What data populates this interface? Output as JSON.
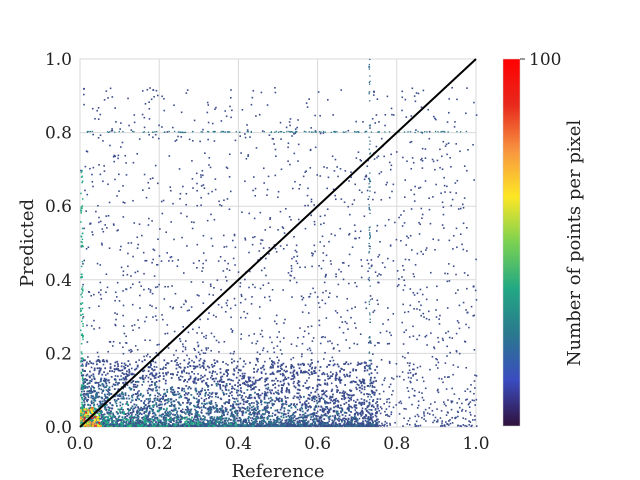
{
  "chart_data": {
    "type": "heatmap",
    "subtype": "density-scatter",
    "title": "",
    "xlabel": "Reference",
    "ylabel": "Predicted",
    "xlim": [
      0.0,
      1.0
    ],
    "ylim": [
      0.0,
      1.0
    ],
    "x_ticks": [
      "0.0",
      "0.2",
      "0.4",
      "0.6",
      "0.8",
      "1.0"
    ],
    "y_ticks": [
      "0.0",
      "0.2",
      "0.4",
      "0.6",
      "0.8",
      "1.0"
    ],
    "x_tick_values": [
      0.0,
      0.2,
      0.4,
      0.6,
      0.8,
      1.0
    ],
    "y_tick_values": [
      0.0,
      0.2,
      0.4,
      0.6,
      0.8,
      1.0
    ],
    "grid": true,
    "reference_line": {
      "from": [
        0.0,
        0.0
      ],
      "to": [
        1.0,
        1.0
      ],
      "color": "#000000"
    },
    "colorbar": {
      "label": "Number of points per pixel",
      "max_label": "100",
      "max": 100,
      "colormap": "turbo-like",
      "colors": [
        "#30123b",
        "#3b4cc0",
        "#2a788e",
        "#22a884",
        "#7ad151",
        "#fde725",
        "#f89540",
        "#e8291c",
        "#ff0000"
      ]
    },
    "features": {
      "dense_region": "low predicted values (0.0-0.1) across reference 0.0-0.6",
      "vertical_band_x": 0.73,
      "horizontal_band_y": 0.8
    }
  }
}
